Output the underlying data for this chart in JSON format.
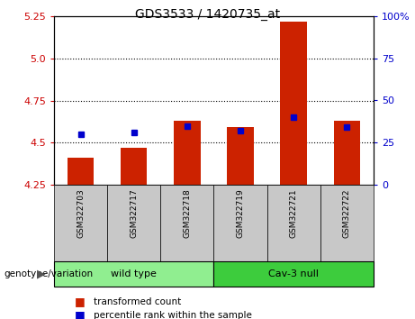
{
  "title": "GDS3533 / 1420735_at",
  "samples": [
    "GSM322703",
    "GSM322717",
    "GSM322718",
    "GSM322719",
    "GSM322721",
    "GSM322722"
  ],
  "red_values": [
    4.41,
    4.47,
    4.63,
    4.59,
    5.22,
    4.63
  ],
  "blue_values": [
    4.55,
    4.56,
    4.6,
    4.57,
    4.65,
    4.59
  ],
  "ylim_left": [
    4.25,
    5.25
  ],
  "yticks_left": [
    4.25,
    4.5,
    4.75,
    5.0,
    5.25
  ],
  "yticks_right": [
    0,
    25,
    50,
    75,
    100
  ],
  "ylim_right": [
    0,
    100
  ],
  "groups": [
    {
      "label": "wild type",
      "indices": [
        0,
        1,
        2
      ],
      "color": "#90ee90"
    },
    {
      "label": "Cav-3 null",
      "indices": [
        3,
        4,
        5
      ],
      "color": "#3dcc3d"
    }
  ],
  "group_label": "genotype/variation",
  "legend_red": "transformed count",
  "legend_blue": "percentile rank within the sample",
  "bar_color": "#cc2200",
  "dot_color": "#0000cc",
  "bg_color": "#c8c8c8",
  "plot_bg": "#ffffff",
  "left_tick_color": "#cc0000",
  "right_tick_color": "#0000cc",
  "bar_width": 0.5,
  "grid_lines": [
    4.5,
    4.75,
    5.0
  ]
}
